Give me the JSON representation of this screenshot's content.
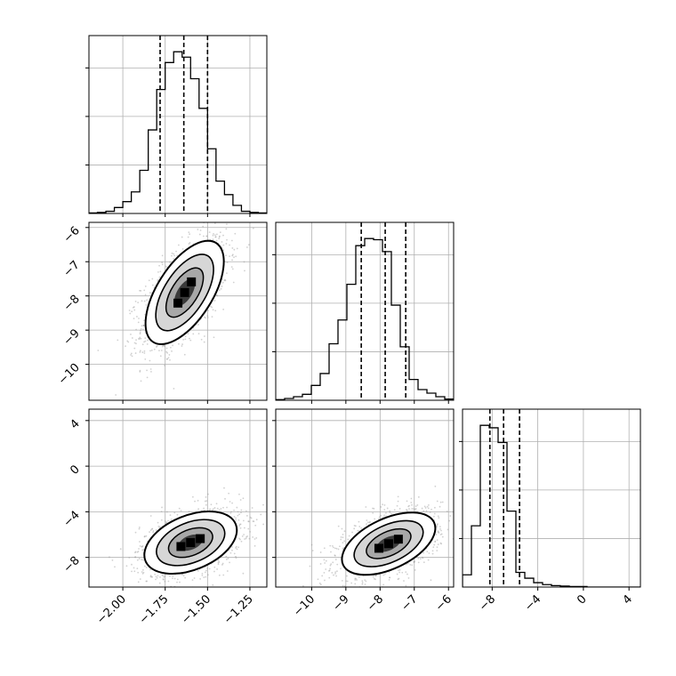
{
  "chart_data": {
    "type": "corner",
    "parameters": [
      {
        "range": [
          -2.2,
          -1.15
        ],
        "ticks": [
          -2.0,
          -1.75,
          -1.5,
          -1.25
        ],
        "tick_labels": [
          "−2.00",
          "−1.75",
          "−1.50",
          "−1.25"
        ]
      },
      {
        "range": [
          -11.05,
          -5.85
        ],
        "ticks": [
          -10,
          -9,
          -8,
          -7,
          -6
        ],
        "tick_labels": [
          "−10",
          "−9",
          "−8",
          "−7",
          "−6"
        ]
      },
      {
        "range": [
          -10.6,
          5.0
        ],
        "ticks": [
          -8,
          -4,
          0,
          4
        ],
        "tick_labels": [
          "−8",
          "−4",
          "0",
          "4"
        ]
      }
    ],
    "quantiles": [
      [
        -1.78,
        -1.64,
        -1.5
      ],
      [
        -8.55,
        -7.85,
        -7.25
      ],
      [
        -8.2,
        -7.0,
        -5.6
      ]
    ],
    "histograms": [
      {
        "edges_start": -2.2,
        "bin_width": 0.05,
        "counts": [
          1,
          2,
          4,
          11,
          22,
          40,
          80,
          155,
          230,
          280,
          300,
          290,
          250,
          195,
          120,
          60,
          35,
          15,
          4,
          2,
          1
        ]
      },
      {
        "edges_start": -11.05,
        "bin_width": 0.26,
        "counts": [
          1,
          3,
          6,
          10,
          25,
          45,
          95,
          135,
          195,
          260,
          272,
          270,
          250,
          160,
          90,
          35,
          18,
          12,
          6,
          2
        ]
      },
      {
        "edges_start": -10.6,
        "bin_width": 0.78,
        "counts": [
          25,
          125,
          330,
          325,
          295,
          155,
          30,
          18,
          9,
          5,
          3,
          2,
          1,
          1,
          0,
          0,
          0,
          0,
          0,
          0
        ]
      }
    ],
    "correlations": {
      "1_0": {
        "mx": -1.635,
        "my": -7.9,
        "sx": 0.11,
        "sy": 0.72,
        "rho": 0.6
      },
      "2_0": {
        "mx": -1.6,
        "my": -6.7,
        "sx": 0.13,
        "sy": 1.3,
        "rho": 0.4
      },
      "2_1": {
        "mx": -7.75,
        "my": -6.8,
        "sx": 0.65,
        "sy": 1.3,
        "rho": 0.5
      }
    }
  }
}
